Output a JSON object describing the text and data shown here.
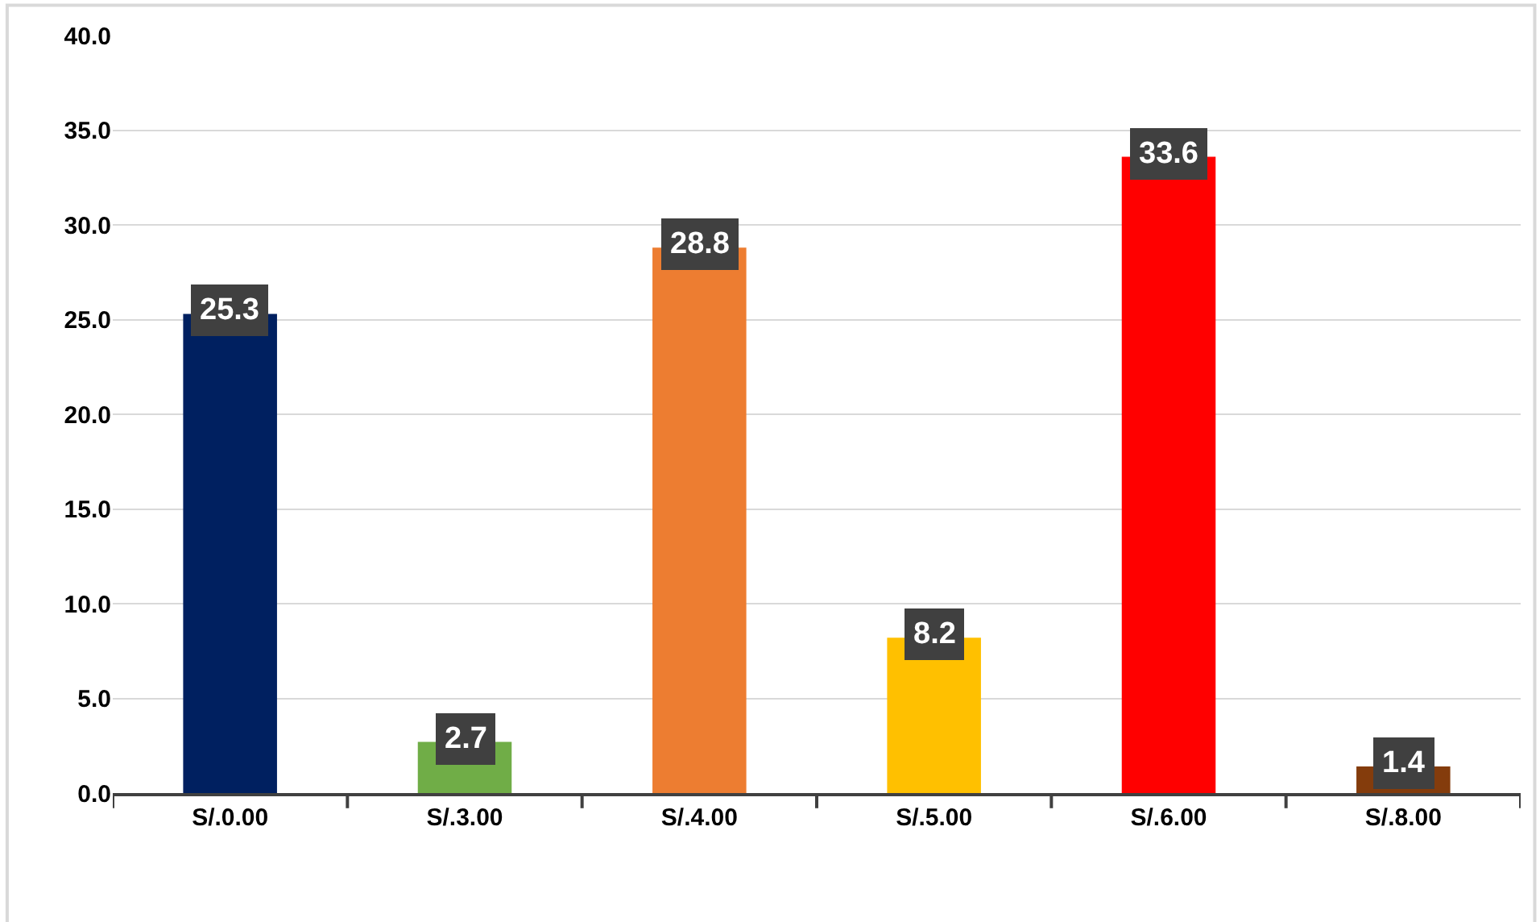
{
  "chart_data": {
    "type": "bar",
    "categories": [
      "S/.0.00",
      "S/.3.00",
      "S/.4.00",
      "S/.5.00",
      "S/.6.00",
      "S/.8.00"
    ],
    "values": [
      25.3,
      2.7,
      28.8,
      8.2,
      33.6,
      1.4
    ],
    "colors": [
      "#002060",
      "#70ad47",
      "#ed7d31",
      "#ffc000",
      "#ff0000",
      "#843c0c"
    ],
    "ylim": [
      0,
      40
    ],
    "yticks": [
      {
        "value": 0,
        "label": "0.0"
      },
      {
        "value": 5,
        "label": "5.0"
      },
      {
        "value": 10,
        "label": "10.0"
      },
      {
        "value": 15,
        "label": "15.0"
      },
      {
        "value": 20,
        "label": "20.0"
      },
      {
        "value": 25,
        "label": "25.0"
      },
      {
        "value": 30,
        "label": "30.0"
      },
      {
        "value": 35,
        "label": "35.0"
      },
      {
        "value": 40,
        "label": "40.0"
      }
    ],
    "grid": "y",
    "data_labels": true,
    "legend": false
  }
}
